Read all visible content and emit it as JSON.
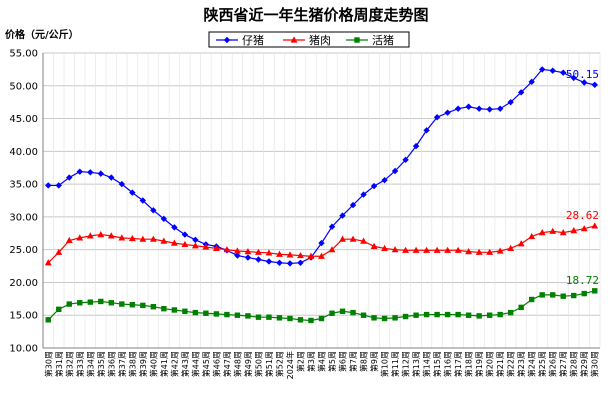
{
  "chart_data": {
    "type": "line",
    "title": "陕西省近一年生猪价格周度走势图",
    "ylabel": "价格（元/公斤）",
    "xlabel": "",
    "ylim": [
      10,
      55
    ],
    "yticks": [
      "10.00",
      "15.00",
      "20.00",
      "25.00",
      "30.00",
      "35.00",
      "40.00",
      "45.00",
      "50.00",
      "55.00"
    ],
    "grid": true,
    "legend_position": "top",
    "categories": [
      "第30周",
      "第31周",
      "第32周",
      "第33周",
      "第34周",
      "第35周",
      "第36周",
      "第37周",
      "第38周",
      "第39周",
      "第40周",
      "第41周",
      "第42周",
      "第43周",
      "第44周",
      "第45周",
      "第46周",
      "第47周",
      "第48周",
      "第49周",
      "第50周",
      "第51周",
      "第52周",
      "2024年",
      "第2周",
      "第3周",
      "第4周",
      "第5周",
      "第6周",
      "第7周",
      "第8周",
      "第9周",
      "第10周",
      "第11周",
      "第12周",
      "第13周",
      "第14周",
      "第15周",
      "第16周",
      "第17周",
      "第18周",
      "第19周",
      "第20周",
      "第21周",
      "第22周",
      "第23周",
      "第24周",
      "第25周",
      "第26周",
      "第27周",
      "第28周",
      "第29周",
      "第30周"
    ],
    "series": [
      {
        "name": "仔猪",
        "color": "#0000ff",
        "marker": "diamond",
        "end_label": "50.15",
        "values": [
          34.8,
          34.8,
          36.0,
          36.9,
          36.8,
          36.6,
          36.0,
          35.0,
          33.7,
          32.5,
          31.0,
          29.7,
          28.4,
          27.3,
          26.5,
          25.8,
          25.5,
          24.9,
          24.1,
          23.8,
          23.5,
          23.2,
          23.0,
          22.9,
          23.0,
          23.8,
          26.0,
          28.5,
          30.2,
          31.8,
          33.4,
          34.7,
          35.6,
          37.0,
          38.7,
          40.8,
          43.2,
          45.2,
          45.9,
          46.5,
          46.8,
          46.5,
          46.4,
          46.5,
          47.5,
          49.0,
          50.6,
          52.5,
          52.3,
          52.0,
          51.2,
          50.5,
          50.15
        ]
      },
      {
        "name": "猪肉",
        "color": "#ff0000",
        "marker": "triangle",
        "end_label": "28.62",
        "values": [
          23.0,
          24.6,
          26.4,
          26.8,
          27.1,
          27.3,
          27.1,
          26.8,
          26.7,
          26.6,
          26.6,
          26.3,
          26.0,
          25.8,
          25.6,
          25.4,
          25.2,
          25.0,
          24.8,
          24.7,
          24.6,
          24.5,
          24.3,
          24.2,
          24.1,
          24.0,
          24.0,
          25.0,
          26.6,
          26.6,
          26.3,
          25.5,
          25.2,
          25.0,
          24.9,
          24.9,
          24.9,
          24.9,
          24.9,
          24.9,
          24.7,
          24.6,
          24.6,
          24.8,
          25.2,
          25.9,
          27.0,
          27.6,
          27.8,
          27.6,
          27.9,
          28.2,
          28.62
        ]
      },
      {
        "name": "活猪",
        "color": "#008000",
        "marker": "square",
        "end_label": "18.72",
        "values": [
          14.3,
          15.9,
          16.7,
          16.9,
          17.0,
          17.1,
          16.9,
          16.7,
          16.6,
          16.5,
          16.3,
          16.0,
          15.8,
          15.6,
          15.4,
          15.3,
          15.2,
          15.1,
          15.0,
          14.9,
          14.7,
          14.7,
          14.6,
          14.5,
          14.3,
          14.2,
          14.5,
          15.3,
          15.6,
          15.4,
          15.0,
          14.6,
          14.5,
          14.6,
          14.8,
          15.0,
          15.1,
          15.1,
          15.1,
          15.1,
          15.0,
          14.9,
          15.0,
          15.1,
          15.4,
          16.2,
          17.4,
          18.1,
          18.1,
          17.9,
          18.0,
          18.3,
          18.72
        ]
      }
    ]
  }
}
